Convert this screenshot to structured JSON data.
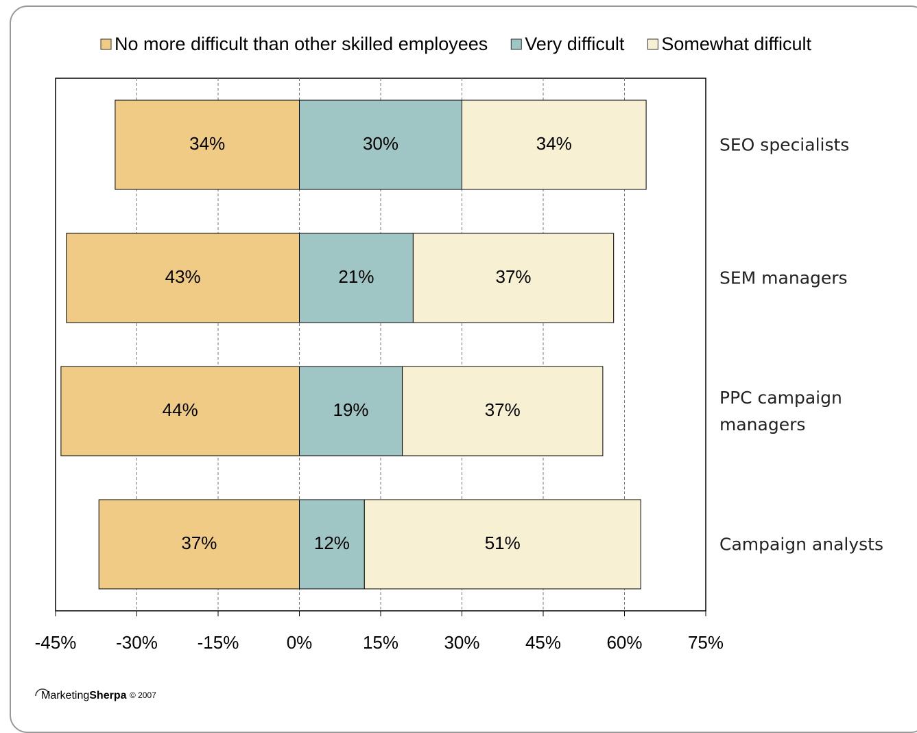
{
  "chart_data": {
    "type": "diverging-bar",
    "categories": [
      "SEO specialists",
      "SEM managers",
      "PPC campaign managers",
      "Campaign analysts"
    ],
    "series": [
      {
        "name": "No more difficult than other skilled employees",
        "color": "#f0cb85",
        "values": [
          -34,
          -43,
          -44,
          -37
        ],
        "value_labels": [
          "34%",
          "43%",
          "44%",
          "37%"
        ]
      },
      {
        "name": "Very difficult",
        "color": "#9fc5c5",
        "values": [
          30,
          21,
          19,
          12
        ],
        "value_labels": [
          "30%",
          "21%",
          "19%",
          "12%"
        ]
      },
      {
        "name": "Somewhat difficult",
        "color": "#f7f0d2",
        "values": [
          34,
          37,
          37,
          51
        ],
        "value_labels": [
          "34%",
          "37%",
          "37%",
          "51%"
        ]
      }
    ],
    "xlim": [
      -45,
      75
    ],
    "xticks": [
      {
        "value": -45,
        "label": "-45%"
      },
      {
        "value": -30,
        "label": "-30%"
      },
      {
        "value": -15,
        "label": "-15%"
      },
      {
        "value": 0,
        "label": "0%"
      },
      {
        "value": 15,
        "label": "15%"
      },
      {
        "value": 30,
        "label": "30%"
      },
      {
        "value": 45,
        "label": "45%"
      },
      {
        "value": 60,
        "label": "60%"
      },
      {
        "value": 75,
        "label": "75%"
      }
    ],
    "grid": true,
    "legend": "top",
    "logo": {
      "text1": "Marketing",
      "text2": "Sherpa",
      "copyright": "© 2007"
    }
  }
}
